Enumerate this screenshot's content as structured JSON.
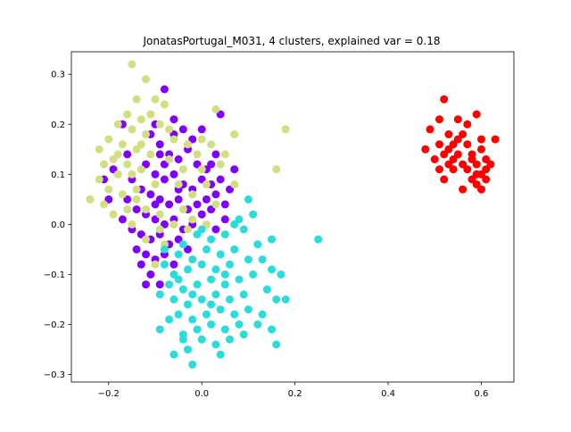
{
  "chart_data": {
    "type": "scatter",
    "title": "JonatasPortugal_M031, 4 clusters, explained var = 0.18",
    "xlabel": "",
    "ylabel": "",
    "xlim": [
      -0.28,
      0.67
    ],
    "ylim": [
      -0.315,
      0.345
    ],
    "x_ticks": [
      -0.2,
      0.0,
      0.2,
      0.4,
      0.6
    ],
    "x_tick_labels": [
      "−0.2",
      "0.0",
      "0.2",
      "0.4",
      "0.6"
    ],
    "y_ticks": [
      -0.3,
      -0.2,
      -0.1,
      0.0,
      0.1,
      0.2,
      0.3
    ],
    "y_tick_labels": [
      "−0.3",
      "−0.2",
      "−0.1",
      "0.0",
      "0.1",
      "0.2",
      "0.3"
    ],
    "grid": false,
    "legend": "none",
    "series": [
      {
        "color": "#8000ff",
        "points": [
          [
            -0.11,
            0.18
          ],
          [
            -0.09,
            0.16
          ],
          [
            -0.07,
            0.14
          ],
          [
            -0.05,
            0.13
          ],
          [
            -0.03,
            0.15
          ],
          [
            -0.01,
            0.12
          ],
          [
            0.01,
            0.11
          ],
          [
            0.03,
            0.14
          ],
          [
            -0.12,
            0.12
          ],
          [
            -0.1,
            0.1
          ],
          [
            -0.08,
            0.09
          ],
          [
            -0.06,
            0.1
          ],
          [
            -0.04,
            0.08
          ],
          [
            -0.02,
            0.07
          ],
          [
            0.0,
            0.09
          ],
          [
            0.02,
            0.08
          ],
          [
            -0.15,
            0.09
          ],
          [
            -0.13,
            0.07
          ],
          [
            -0.11,
            0.06
          ],
          [
            -0.09,
            0.05
          ],
          [
            -0.07,
            0.04
          ],
          [
            -0.05,
            0.05
          ],
          [
            -0.03,
            0.03
          ],
          [
            -0.01,
            0.04
          ],
          [
            0.01,
            0.05
          ],
          [
            0.03,
            0.06
          ],
          [
            0.05,
            0.04
          ],
          [
            0.06,
            0.07
          ],
          [
            0.04,
            0.09
          ],
          [
            0.02,
            0.12
          ],
          [
            -0.16,
            0.05
          ],
          [
            -0.14,
            0.03
          ],
          [
            -0.12,
            0.02
          ],
          [
            -0.1,
            0.01
          ],
          [
            -0.08,
            0.0
          ],
          [
            -0.06,
            0.01
          ],
          [
            -0.04,
            -0.01
          ],
          [
            -0.02,
            0.0
          ],
          [
            0.0,
            0.02
          ],
          [
            0.02,
            0.03
          ],
          [
            -0.17,
            0.01
          ],
          [
            -0.15,
            -0.01
          ],
          [
            -0.13,
            -0.02
          ],
          [
            -0.11,
            -0.03
          ],
          [
            -0.09,
            -0.02
          ],
          [
            -0.07,
            -0.04
          ],
          [
            -0.05,
            -0.03
          ],
          [
            -0.03,
            -0.05
          ],
          [
            -0.14,
            -0.05
          ],
          [
            -0.12,
            -0.06
          ],
          [
            -0.1,
            -0.07
          ],
          [
            -0.08,
            -0.06
          ],
          [
            -0.06,
            -0.08
          ],
          [
            -0.13,
            -0.08
          ],
          [
            -0.11,
            -0.1
          ],
          [
            -0.09,
            -0.12
          ],
          [
            -0.08,
            0.27
          ],
          [
            -0.06,
            0.21
          ],
          [
            -0.04,
            0.19
          ],
          [
            -0.1,
            0.2
          ],
          [
            0.0,
            0.19
          ],
          [
            0.04,
            0.22
          ],
          [
            0.07,
            0.11
          ],
          [
            -0.16,
            0.14
          ],
          [
            -0.19,
            0.11
          ],
          [
            -0.21,
            0.09
          ],
          [
            -0.2,
            0.05
          ],
          [
            -0.17,
            0.2
          ],
          [
            -0.02,
            0.17
          ],
          [
            0.05,
            0.01
          ],
          [
            0.03,
            -0.01
          ],
          [
            -0.06,
            0.18
          ],
          [
            -0.08,
            0.12
          ],
          [
            -0.05,
            0.07
          ],
          [
            -0.09,
            0.14
          ],
          [
            -0.1,
            0.04
          ],
          [
            -0.12,
            -0.12
          ]
        ]
      },
      {
        "color": "#d4dd80",
        "points": [
          [
            -0.15,
            0.32
          ],
          [
            -0.12,
            0.29
          ],
          [
            -0.1,
            0.25
          ],
          [
            -0.14,
            0.25
          ],
          [
            -0.08,
            0.24
          ],
          [
            -0.16,
            0.22
          ],
          [
            -0.13,
            0.21
          ],
          [
            -0.11,
            0.22
          ],
          [
            -0.18,
            0.2
          ],
          [
            -0.15,
            0.19
          ],
          [
            -0.12,
            0.18
          ],
          [
            -0.2,
            0.17
          ],
          [
            -0.17,
            0.16
          ],
          [
            -0.14,
            0.15
          ],
          [
            -0.22,
            0.15
          ],
          [
            -0.19,
            0.13
          ],
          [
            -0.16,
            0.12
          ],
          [
            -0.13,
            0.11
          ],
          [
            -0.21,
            0.12
          ],
          [
            -0.18,
            0.1
          ],
          [
            -0.2,
            0.07
          ],
          [
            -0.17,
            0.06
          ],
          [
            -0.14,
            0.05
          ],
          [
            -0.21,
            0.04
          ],
          [
            -0.24,
            0.05
          ],
          [
            -0.22,
            0.09
          ],
          [
            -0.09,
            0.2
          ],
          [
            -0.06,
            0.17
          ],
          [
            -0.03,
            0.16
          ],
          [
            0.0,
            0.17
          ],
          [
            -0.07,
            0.13
          ],
          [
            -0.04,
            0.11
          ],
          [
            -0.01,
            0.14
          ],
          [
            0.02,
            0.16
          ],
          [
            -0.05,
            0.08
          ],
          [
            -0.02,
            0.06
          ],
          [
            0.01,
            0.08
          ],
          [
            0.04,
            0.12
          ],
          [
            0.07,
            0.08
          ],
          [
            0.03,
            0.04
          ],
          [
            -0.12,
            0.03
          ],
          [
            -0.09,
            0.02
          ],
          [
            -0.06,
            0.0
          ],
          [
            -0.03,
            -0.01
          ],
          [
            -0.15,
            0.0
          ],
          [
            -0.12,
            -0.03
          ],
          [
            -0.08,
            -0.04
          ],
          [
            -0.05,
            -0.06
          ],
          [
            -0.1,
            -0.08
          ],
          [
            0.07,
            0.18
          ],
          [
            0.03,
            0.23
          ],
          [
            0.18,
            0.19
          ],
          [
            0.16,
            0.11
          ],
          [
            -0.04,
            0.03
          ],
          [
            -0.02,
            0.01
          ],
          [
            0.01,
            0.0
          ],
          [
            -0.11,
            0.14
          ],
          [
            -0.07,
            0.19
          ],
          [
            -0.13,
            0.16
          ],
          [
            -0.18,
            0.14
          ],
          [
            -0.15,
            0.1
          ],
          [
            -0.1,
            0.08
          ],
          [
            -0.16,
            0.03
          ],
          [
            -0.19,
            0.02
          ],
          [
            0.05,
            0.14
          ],
          [
            0.0,
            0.11
          ],
          [
            -0.09,
            -0.01
          ],
          [
            -0.14,
            0.07
          ]
        ]
      },
      {
        "color": "#2adddd",
        "points": [
          [
            0.11,
            0.02
          ],
          [
            0.08,
            0.01
          ],
          [
            0.09,
            -0.01
          ],
          [
            0.05,
            -0.02
          ],
          [
            0.02,
            -0.03
          ],
          [
            -0.01,
            -0.02
          ],
          [
            -0.04,
            -0.04
          ],
          [
            0.12,
            -0.04
          ],
          [
            0.07,
            -0.05
          ],
          [
            0.04,
            -0.06
          ],
          [
            0.01,
            -0.05
          ],
          [
            -0.02,
            -0.07
          ],
          [
            -0.05,
            -0.06
          ],
          [
            0.1,
            -0.07
          ],
          [
            0.06,
            -0.08
          ],
          [
            0.03,
            -0.09
          ],
          [
            0.0,
            -0.08
          ],
          [
            -0.03,
            -0.09
          ],
          [
            -0.06,
            -0.1
          ],
          [
            -0.08,
            -0.08
          ],
          [
            0.11,
            -0.1
          ],
          [
            0.08,
            -0.11
          ],
          [
            0.05,
            -0.12
          ],
          [
            0.02,
            -0.11
          ],
          [
            -0.01,
            -0.12
          ],
          [
            -0.04,
            -0.13
          ],
          [
            -0.07,
            -0.12
          ],
          [
            0.09,
            -0.14
          ],
          [
            0.06,
            -0.15
          ],
          [
            0.03,
            -0.14
          ],
          [
            0.0,
            -0.15
          ],
          [
            -0.03,
            -0.16
          ],
          [
            -0.06,
            -0.15
          ],
          [
            0.1,
            -0.17
          ],
          [
            0.07,
            -0.18
          ],
          [
            0.04,
            -0.17
          ],
          [
            0.01,
            -0.18
          ],
          [
            -0.02,
            -0.19
          ],
          [
            -0.05,
            -0.18
          ],
          [
            0.08,
            -0.2
          ],
          [
            0.05,
            -0.21
          ],
          [
            0.02,
            -0.2
          ],
          [
            -0.01,
            -0.21
          ],
          [
            -0.04,
            -0.22
          ],
          [
            0.06,
            -0.23
          ],
          [
            0.03,
            -0.24
          ],
          [
            0.0,
            -0.23
          ],
          [
            -0.03,
            -0.25
          ],
          [
            0.04,
            -0.26
          ],
          [
            -0.02,
            -0.28
          ],
          [
            -0.06,
            -0.26
          ],
          [
            0.09,
            -0.22
          ],
          [
            0.13,
            -0.18
          ],
          [
            0.14,
            -0.13
          ],
          [
            0.13,
            -0.07
          ],
          [
            0.15,
            -0.09
          ],
          [
            0.16,
            -0.15
          ],
          [
            0.18,
            -0.15
          ],
          [
            0.15,
            -0.21
          ],
          [
            0.16,
            -0.24
          ],
          [
            0.15,
            -0.03
          ],
          [
            0.17,
            -0.1
          ],
          [
            0.25,
            -0.03
          ],
          [
            -0.09,
            -0.14
          ],
          [
            -0.08,
            -0.05
          ],
          [
            0.07,
            0.0
          ],
          [
            0.1,
            0.05
          ],
          [
            -0.07,
            -0.19
          ],
          [
            -0.09,
            -0.21
          ],
          [
            -0.04,
            -0.23
          ],
          [
            0.12,
            -0.2
          ],
          [
            0.0,
            -0.01
          ],
          [
            0.05,
            -0.1
          ],
          [
            -0.05,
            -0.11
          ],
          [
            0.02,
            -0.16
          ],
          [
            -0.02,
            -0.14
          ]
        ]
      },
      {
        "color": "#ff0000",
        "points": [
          [
            0.52,
            0.25
          ],
          [
            0.59,
            0.22
          ],
          [
            0.55,
            0.21
          ],
          [
            0.51,
            0.21
          ],
          [
            0.57,
            0.2
          ],
          [
            0.49,
            0.19
          ],
          [
            0.53,
            0.18
          ],
          [
            0.56,
            0.18
          ],
          [
            0.6,
            0.17
          ],
          [
            0.63,
            0.17
          ],
          [
            0.51,
            0.16
          ],
          [
            0.54,
            0.16
          ],
          [
            0.57,
            0.16
          ],
          [
            0.6,
            0.15
          ],
          [
            0.48,
            0.15
          ],
          [
            0.52,
            0.14
          ],
          [
            0.55,
            0.14
          ],
          [
            0.58,
            0.14
          ],
          [
            0.61,
            0.13
          ],
          [
            0.5,
            0.13
          ],
          [
            0.53,
            0.12
          ],
          [
            0.56,
            0.12
          ],
          [
            0.59,
            0.12
          ],
          [
            0.62,
            0.12
          ],
          [
            0.51,
            0.11
          ],
          [
            0.54,
            0.11
          ],
          [
            0.57,
            0.11
          ],
          [
            0.6,
            0.1
          ],
          [
            0.52,
            0.09
          ],
          [
            0.58,
            0.09
          ],
          [
            0.61,
            0.09
          ],
          [
            0.56,
            0.07
          ],
          [
            0.6,
            0.07
          ],
          [
            0.59,
            0.08
          ],
          [
            0.55,
            0.17
          ],
          [
            0.53,
            0.15
          ],
          [
            0.58,
            0.13
          ],
          [
            0.61,
            0.11
          ],
          [
            0.59,
            0.1
          ],
          [
            0.54,
            0.13
          ]
        ]
      }
    ]
  }
}
